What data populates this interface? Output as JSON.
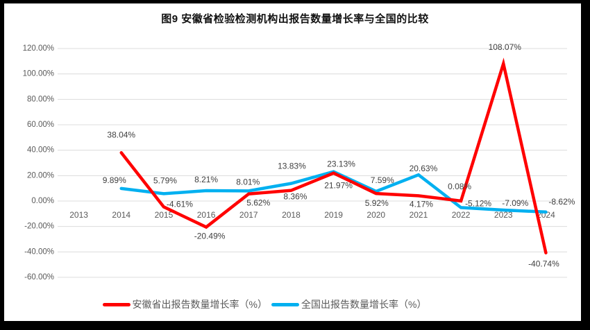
{
  "title": "图9 安徽省检验检测机构出报告数量增长率与全国的比较",
  "frame_color": "#000000",
  "background_color": "#ffffff",
  "chart_data": {
    "type": "line",
    "title": "图9 安徽省检验检测机构出报告数量增长率与全国的比较",
    "categories": [
      "2013",
      "2014",
      "2015",
      "2016",
      "2017",
      "2018",
      "2019",
      "2020",
      "2021",
      "2022",
      "2023",
      "2024"
    ],
    "xlabel": "",
    "ylabel": "",
    "ylim": [
      -60,
      120
    ],
    "y_tick_step": 20,
    "grid": true,
    "legend_position": "bottom",
    "y_ticks": {
      "values": [
        120,
        100,
        80,
        60,
        40,
        20,
        0,
        -20,
        -40,
        -60
      ],
      "labels": [
        "120.00%",
        "100.00%",
        "80.00%",
        "60.00%",
        "40.00%",
        "20.00%",
        "0.00%",
        "-20.00%",
        "-40.00%",
        "-60.00%"
      ]
    },
    "axis_text_color": "#595959",
    "data_label_color": "#3f3f3f",
    "gridline_color": "#dcdcdc",
    "series": [
      {
        "name": "安徽省出报告数量增长率（%）",
        "color": "#ff0000",
        "values": [
          null,
          38.04,
          -4.61,
          -20.49,
          5.62,
          8.36,
          21.97,
          5.92,
          4.17,
          0.08,
          108.07,
          -40.74
        ],
        "labels": [
          null,
          "38.04%",
          "-4.61%",
          "-20.49%",
          "5.62%",
          "8.36%",
          "21.97%",
          "5.92%",
          "4.17%",
          "0.08%",
          "108.07%",
          "-40.74%"
        ],
        "label_offsets": [
          null,
          [
            0,
            -26
          ],
          [
            23,
            -4
          ],
          [
            5,
            13
          ],
          [
            14,
            13
          ],
          [
            6,
            9
          ],
          [
            7,
            18
          ],
          [
            1,
            14
          ],
          [
            4,
            12
          ],
          [
            -2,
            -21
          ],
          [
            2,
            -24
          ],
          [
            -3,
            16
          ]
        ]
      },
      {
        "name": "全国出报告数量增长率（%）",
        "color": "#00b0f0",
        "values": [
          null,
          9.89,
          5.79,
          8.21,
          8.01,
          13.83,
          23.13,
          7.59,
          20.63,
          -5.12,
          -7.09,
          -8.62
        ],
        "labels": [
          null,
          "9.89%",
          "5.79%",
          "8.21%",
          "8.01%",
          "13.83%",
          "23.13%",
          "7.59%",
          "20.63%",
          "-5.12%",
          "-7.09%",
          "-8.62%"
        ],
        "label_offsets": [
          null,
          [
            -10,
            -12
          ],
          [
            2,
            -19
          ],
          [
            0,
            -16
          ],
          [
            -1,
            -13
          ],
          [
            1,
            -25
          ],
          [
            11,
            -11
          ],
          [
            9,
            -16
          ],
          [
            7,
            -9
          ],
          [
            25,
            -6
          ],
          [
            17,
            -10
          ],
          [
            23,
            -15
          ]
        ]
      }
    ]
  }
}
